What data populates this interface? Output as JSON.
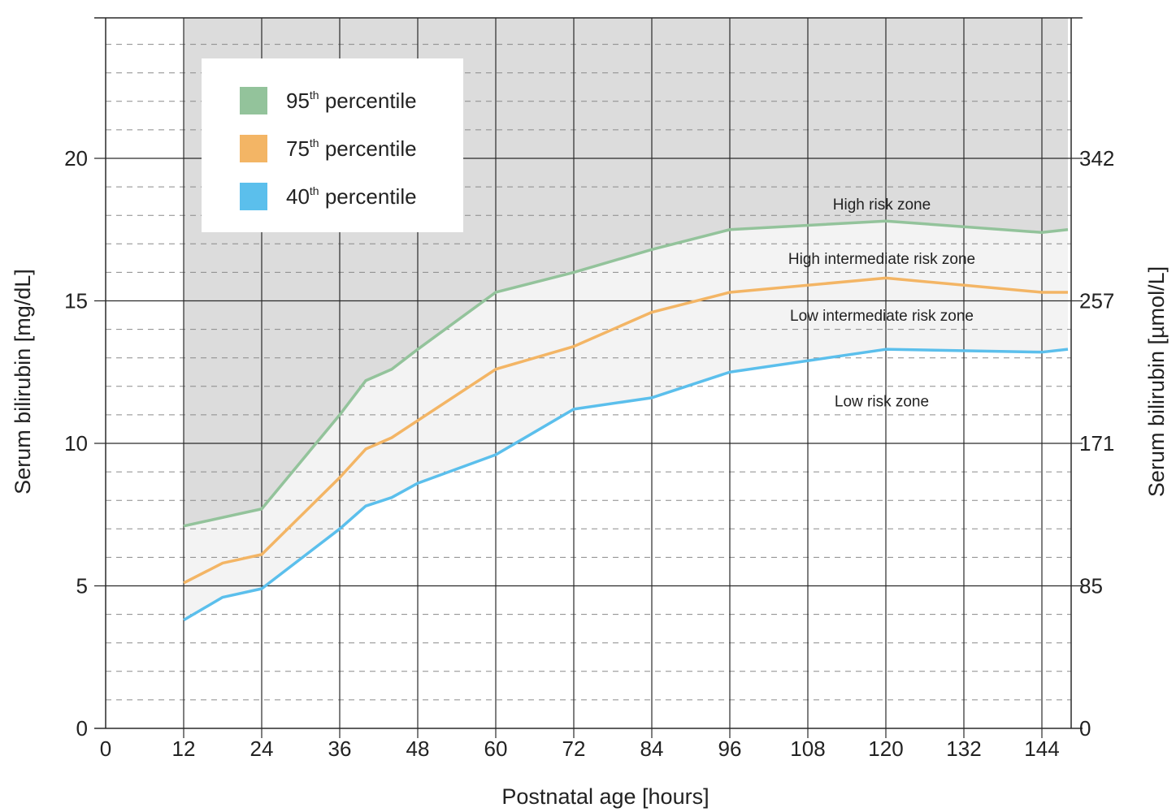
{
  "chart_data": {
    "type": "line",
    "xlabel": "Postnatal age [hours]",
    "ylabel_left": "Serum bilirubin [mg/dL]",
    "ylabel_right": "Serum bilirubin [µmol/L]",
    "xlim": [
      0,
      148
    ],
    "ylim": [
      0,
      25
    ],
    "x_ticks": [
      0,
      12,
      24,
      36,
      48,
      60,
      72,
      84,
      96,
      108,
      120,
      132,
      144
    ],
    "y_ticks_left": [
      0,
      5,
      10,
      15,
      20
    ],
    "y_ticks_right": [
      {
        "value": 0,
        "label": "0"
      },
      {
        "value": 5,
        "label": "85"
      },
      {
        "value": 10,
        "label": "171"
      },
      {
        "value": 15,
        "label": "257"
      },
      {
        "value": 20,
        "label": "342"
      }
    ],
    "minor_gridlines": "dashed, every 1 mg/dL",
    "grid": true,
    "legend_position": "top-left",
    "series": [
      {
        "name": "95th percentile",
        "legend_base": "95",
        "legend_sup": "th",
        "legend_rest": " percentile",
        "color": "#93c39b",
        "x": [
          12,
          24,
          36,
          40,
          44,
          48,
          60,
          72,
          84,
          96,
          120,
          144,
          148
        ],
        "y": [
          7.1,
          7.7,
          11.0,
          12.2,
          12.6,
          13.3,
          15.3,
          16.0,
          16.8,
          17.5,
          17.8,
          17.4,
          17.5
        ]
      },
      {
        "name": "75th percentile",
        "legend_base": "75",
        "legend_sup": "th",
        "legend_rest": " percentile",
        "color": "#f3b565",
        "x": [
          12,
          18,
          24,
          36,
          40,
          44,
          48,
          60,
          72,
          84,
          96,
          120,
          144,
          148
        ],
        "y": [
          5.1,
          5.8,
          6.1,
          8.8,
          9.8,
          10.2,
          10.8,
          12.6,
          13.4,
          14.6,
          15.3,
          15.8,
          15.3,
          15.3
        ]
      },
      {
        "name": "40th percentile",
        "legend_base": "40",
        "legend_sup": "th",
        "legend_rest": " percentile",
        "color": "#5bbfec",
        "x": [
          12,
          18,
          24,
          36,
          40,
          44,
          48,
          60,
          72,
          84,
          96,
          120,
          144,
          148
        ],
        "y": [
          3.8,
          4.6,
          4.9,
          7.0,
          7.8,
          8.1,
          8.6,
          9.6,
          11.2,
          11.6,
          12.5,
          13.3,
          13.2,
          13.3
        ]
      }
    ],
    "zones": [
      {
        "label": "High risk zone",
        "x": 120,
        "y": 18.4
      },
      {
        "label": "High intermediate risk zone",
        "x": 120,
        "y": 16.5
      },
      {
        "label": "Low intermediate risk zone",
        "x": 120,
        "y": 14.5
      },
      {
        "label": "Low risk zone",
        "x": 120,
        "y": 11.5
      }
    ],
    "colors": {
      "high_risk_fill": "#dcdcdc",
      "intermediate_fill": "#f3f3f3",
      "plot_background": "#ffffff",
      "grid_major": "#2a2a2a",
      "grid_minor": "#8a8a8a"
    }
  }
}
